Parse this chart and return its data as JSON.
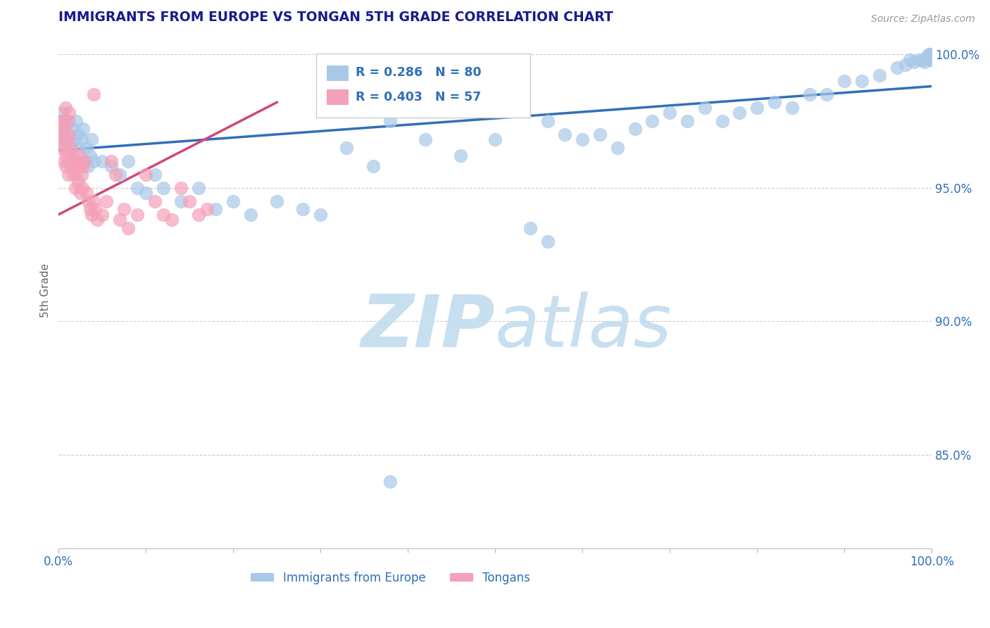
{
  "title": "IMMIGRANTS FROM EUROPE VS TONGAN 5TH GRADE CORRELATION CHART",
  "source_text": "Source: ZipAtlas.com",
  "ylabel": "5th Grade",
  "xmin": 0.0,
  "xmax": 1.0,
  "ymin": 0.815,
  "ymax": 1.008,
  "blue_R": 0.286,
  "blue_N": 80,
  "pink_R": 0.403,
  "pink_N": 57,
  "legend_label_blue": "Immigrants from Europe",
  "legend_label_pink": "Tongans",
  "blue_color": "#a8c8e8",
  "pink_color": "#f4a0b8",
  "blue_line_color": "#3070b8",
  "pink_line_color": "#d04878",
  "text_color": "#3070b8",
  "title_color": "#1a1a8c",
  "watermark_zip_color": "#c8dff0",
  "watermark_atlas_color": "#c8dff0",
  "ytick_labels": [
    "85.0%",
    "90.0%",
    "95.0%",
    "100.0%"
  ],
  "ytick_values": [
    0.85,
    0.9,
    0.95,
    1.0
  ],
  "blue_scatter_x": [
    0.002,
    0.004,
    0.006,
    0.008,
    0.01,
    0.012,
    0.014,
    0.016,
    0.018,
    0.02,
    0.022,
    0.024,
    0.026,
    0.028,
    0.03,
    0.032,
    0.034,
    0.036,
    0.038,
    0.04,
    0.05,
    0.06,
    0.07,
    0.08,
    0.09,
    0.1,
    0.11,
    0.12,
    0.14,
    0.16,
    0.18,
    0.2,
    0.22,
    0.25,
    0.28,
    0.3,
    0.33,
    0.36,
    0.38,
    0.42,
    0.46,
    0.5,
    0.54,
    0.56,
    0.58,
    0.6,
    0.62,
    0.64,
    0.66,
    0.68,
    0.7,
    0.72,
    0.74,
    0.76,
    0.78,
    0.8,
    0.82,
    0.84,
    0.86,
    0.88,
    0.9,
    0.92,
    0.94,
    0.96,
    0.97,
    0.975,
    0.98,
    0.985,
    0.99,
    0.992,
    0.994,
    0.996,
    0.997,
    0.998,
    0.999,
    0.999,
    1.0,
    1.0,
    0.38,
    0.56
  ],
  "blue_scatter_y": [
    0.975,
    0.978,
    0.972,
    0.968,
    0.97,
    0.975,
    0.965,
    0.972,
    0.968,
    0.975,
    0.97,
    0.965,
    0.968,
    0.972,
    0.96,
    0.965,
    0.958,
    0.962,
    0.968,
    0.96,
    0.96,
    0.958,
    0.955,
    0.96,
    0.95,
    0.948,
    0.955,
    0.95,
    0.945,
    0.95,
    0.942,
    0.945,
    0.94,
    0.945,
    0.942,
    0.94,
    0.965,
    0.958,
    0.975,
    0.968,
    0.962,
    0.968,
    0.935,
    0.975,
    0.97,
    0.968,
    0.97,
    0.965,
    0.972,
    0.975,
    0.978,
    0.975,
    0.98,
    0.975,
    0.978,
    0.98,
    0.982,
    0.98,
    0.985,
    0.985,
    0.99,
    0.99,
    0.992,
    0.995,
    0.996,
    0.998,
    0.997,
    0.998,
    0.998,
    0.997,
    0.999,
    0.999,
    1.0,
    0.998,
    0.999,
    1.0,
    0.998,
    1.0,
    0.84,
    0.93
  ],
  "pink_scatter_x": [
    0.001,
    0.002,
    0.003,
    0.004,
    0.005,
    0.006,
    0.007,
    0.008,
    0.009,
    0.01,
    0.011,
    0.012,
    0.013,
    0.014,
    0.015,
    0.016,
    0.017,
    0.018,
    0.019,
    0.02,
    0.021,
    0.022,
    0.023,
    0.024,
    0.025,
    0.026,
    0.027,
    0.028,
    0.03,
    0.032,
    0.034,
    0.036,
    0.038,
    0.04,
    0.042,
    0.044,
    0.05,
    0.055,
    0.06,
    0.065,
    0.07,
    0.075,
    0.08,
    0.09,
    0.1,
    0.11,
    0.12,
    0.13,
    0.14,
    0.15,
    0.16,
    0.17,
    0.04,
    0.012,
    0.008,
    0.01,
    0.006
  ],
  "pink_scatter_y": [
    0.965,
    0.97,
    0.968,
    0.975,
    0.972,
    0.96,
    0.965,
    0.958,
    0.962,
    0.968,
    0.955,
    0.97,
    0.96,
    0.965,
    0.962,
    0.958,
    0.955,
    0.96,
    0.95,
    0.955,
    0.96,
    0.952,
    0.958,
    0.962,
    0.948,
    0.955,
    0.95,
    0.958,
    0.96,
    0.948,
    0.945,
    0.942,
    0.94,
    0.945,
    0.942,
    0.938,
    0.94,
    0.945,
    0.96,
    0.955,
    0.938,
    0.942,
    0.935,
    0.94,
    0.955,
    0.945,
    0.94,
    0.938,
    0.95,
    0.945,
    0.94,
    0.942,
    0.985,
    0.978,
    0.98,
    0.975,
    0.975
  ]
}
